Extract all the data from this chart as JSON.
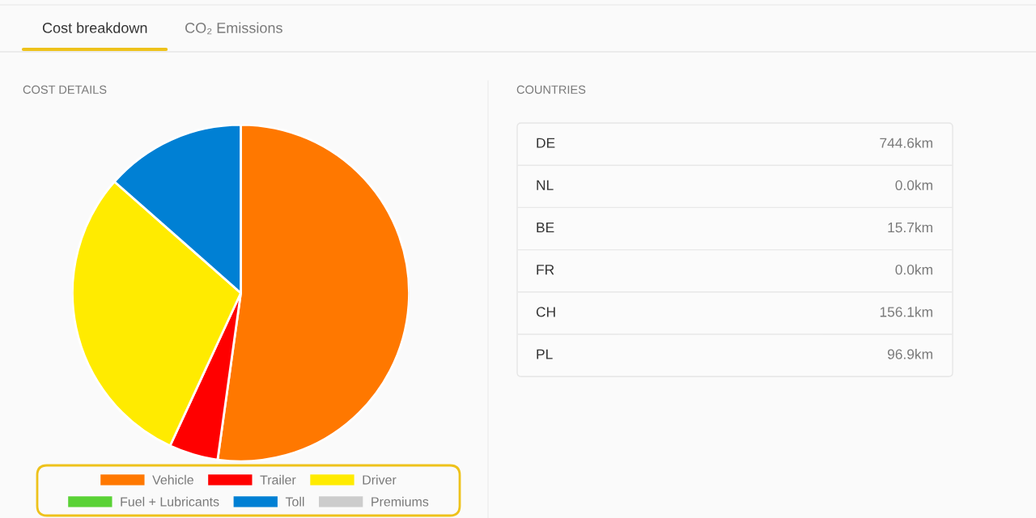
{
  "chart_data": [
    {
      "type": "pie",
      "title": "COST DETAILS",
      "annotations": [
        "Cost breakdown",
        "CO₂ Emissions"
      ],
      "categories": [
        "Vehicle",
        "Trailer",
        "Driver",
        "Fuel + Lubricants",
        "Toll",
        "Premiums"
      ],
      "values": [
        52.2,
        4.7,
        29.6,
        0,
        13.5,
        0
      ],
      "colors": [
        "#ff7800",
        "#ff0000",
        "#ffeb00",
        "#5ad236",
        "#0080d4",
        "#cccccc"
      ],
      "legend": "bottom"
    },
    {
      "type": "other",
      "title": "COUNTRIES",
      "categories": [
        "DE",
        "NL",
        "BE",
        "FR",
        "CH",
        "PL"
      ],
      "value_labels": [
        "744.6km",
        "0.0km",
        "15.7km",
        "0.0km",
        "156.1km",
        "96.9km"
      ]
    }
  ]
}
